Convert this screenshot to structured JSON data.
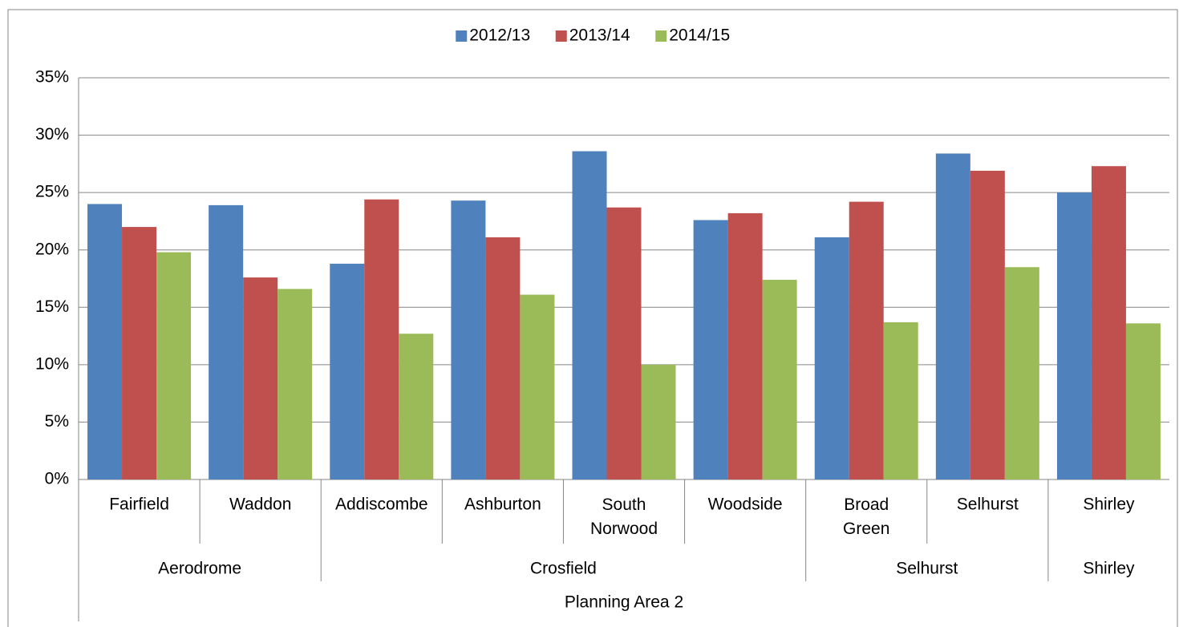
{
  "chart_data": {
    "type": "bar",
    "categories": [
      "Fairfield",
      "Waddon",
      "Addiscombe",
      "Ashburton",
      "South Norwood",
      "Woodside",
      "Broad Green",
      "Selhurst",
      "Shirley"
    ],
    "groups": [
      {
        "name": "Aerodrome",
        "count": 2
      },
      {
        "name": "Crosfield",
        "count": 4
      },
      {
        "name": "Selhurst",
        "count": 2
      },
      {
        "name": "Shirley",
        "count": 1
      }
    ],
    "top_group": "Planning Area 2",
    "series": [
      {
        "name": "2012/13",
        "color": "#4f81bd",
        "values": [
          24.0,
          23.9,
          18.8,
          24.3,
          28.6,
          22.6,
          21.1,
          28.4,
          25.0
        ]
      },
      {
        "name": "2013/14",
        "color": "#c0504d",
        "values": [
          22.0,
          17.6,
          24.4,
          21.1,
          23.7,
          23.2,
          24.2,
          26.9,
          27.3
        ]
      },
      {
        "name": "2014/15",
        "color": "#9bbb59",
        "values": [
          19.8,
          16.6,
          12.7,
          16.1,
          10.0,
          17.4,
          13.7,
          18.5,
          13.6
        ]
      }
    ],
    "ylim": [
      0,
      35
    ],
    "yticks": [
      {
        "value": 0,
        "label": "0%"
      },
      {
        "value": 5,
        "label": "5%"
      },
      {
        "value": 10,
        "label": "10%"
      },
      {
        "value": 15,
        "label": "15%"
      },
      {
        "value": 20,
        "label": "20%"
      },
      {
        "value": 25,
        "label": "25%"
      },
      {
        "value": 30,
        "label": "30%"
      },
      {
        "value": 35,
        "label": "35%"
      }
    ],
    "grid": true,
    "legend": "top"
  }
}
